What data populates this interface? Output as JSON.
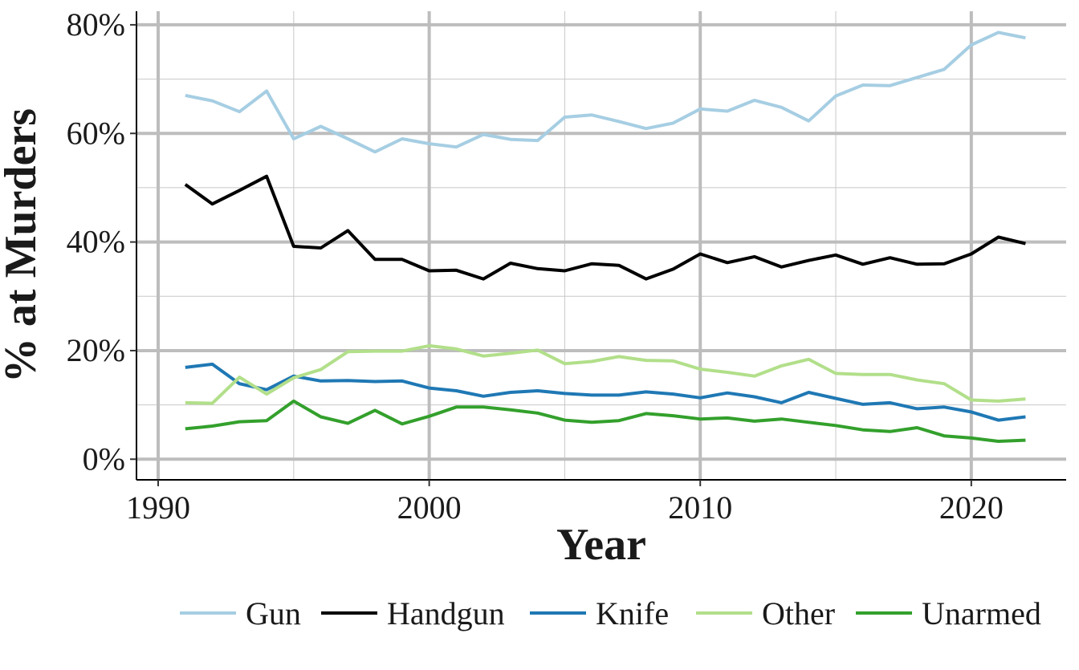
{
  "chart_data": {
    "type": "line",
    "title": "",
    "xlabel": "Year",
    "ylabel": "% at Murders",
    "xlim": [
      1989.2,
      2023.5
    ],
    "ylim": [
      -0.038,
      0.825
    ],
    "x_ticks": [
      1990,
      2000,
      2010,
      2020
    ],
    "x_tick_labels": [
      "1990",
      "2000",
      "2010",
      "2020"
    ],
    "y_ticks": [
      0,
      0.2,
      0.4,
      0.6,
      0.8
    ],
    "y_tick_labels": [
      "0%",
      "20%",
      "40%",
      "60%",
      "80%"
    ],
    "grid": true,
    "legend_position": "bottom",
    "x": [
      1991,
      1992,
      1993,
      1994,
      1995,
      1996,
      1997,
      1998,
      1999,
      2000,
      2001,
      2002,
      2003,
      2004,
      2005,
      2006,
      2007,
      2008,
      2009,
      2010,
      2011,
      2012,
      2013,
      2014,
      2015,
      2016,
      2017,
      2018,
      2019,
      2020,
      2021,
      2022
    ],
    "series": [
      {
        "name": "Gun",
        "color": "#a6cee3",
        "values": [
          0.67,
          0.66,
          0.64,
          0.678,
          0.59,
          0.613,
          0.59,
          0.566,
          0.59,
          0.581,
          0.575,
          0.598,
          0.589,
          0.587,
          0.63,
          0.634,
          0.622,
          0.609,
          0.619,
          0.645,
          0.641,
          0.661,
          0.648,
          0.623,
          0.669,
          0.689,
          0.688,
          0.703,
          0.718,
          0.763,
          0.786,
          0.776
        ]
      },
      {
        "name": "Handgun",
        "color": "#000000",
        "values": [
          0.506,
          0.47,
          0.495,
          0.521,
          0.392,
          0.389,
          0.421,
          0.368,
          0.368,
          0.347,
          0.348,
          0.332,
          0.361,
          0.351,
          0.347,
          0.36,
          0.357,
          0.332,
          0.35,
          0.378,
          0.362,
          0.373,
          0.354,
          0.366,
          0.376,
          0.359,
          0.371,
          0.359,
          0.36,
          0.378,
          0.409,
          0.397
        ]
      },
      {
        "name": "Knife",
        "color": "#1f78b4",
        "values": [
          0.169,
          0.175,
          0.139,
          0.128,
          0.153,
          0.144,
          0.145,
          0.143,
          0.144,
          0.131,
          0.126,
          0.116,
          0.123,
          0.126,
          0.121,
          0.118,
          0.118,
          0.124,
          0.12,
          0.113,
          0.122,
          0.115,
          0.104,
          0.123,
          0.112,
          0.101,
          0.104,
          0.093,
          0.096,
          0.087,
          0.072,
          0.078
        ]
      },
      {
        "name": "Other",
        "color": "#b2df8a",
        "values": [
          0.104,
          0.103,
          0.151,
          0.12,
          0.15,
          0.165,
          0.198,
          0.199,
          0.199,
          0.209,
          0.203,
          0.19,
          0.195,
          0.201,
          0.176,
          0.18,
          0.189,
          0.182,
          0.181,
          0.166,
          0.16,
          0.153,
          0.172,
          0.184,
          0.158,
          0.156,
          0.156,
          0.146,
          0.139,
          0.109,
          0.107,
          0.111
        ]
      },
      {
        "name": "Unarmed",
        "color": "#33a02c",
        "values": [
          0.056,
          0.061,
          0.069,
          0.071,
          0.107,
          0.078,
          0.066,
          0.09,
          0.065,
          0.079,
          0.096,
          0.096,
          0.091,
          0.085,
          0.072,
          0.068,
          0.071,
          0.084,
          0.08,
          0.074,
          0.076,
          0.07,
          0.074,
          0.068,
          0.062,
          0.054,
          0.051,
          0.058,
          0.043,
          0.039,
          0.033,
          0.035
        ]
      }
    ]
  }
}
